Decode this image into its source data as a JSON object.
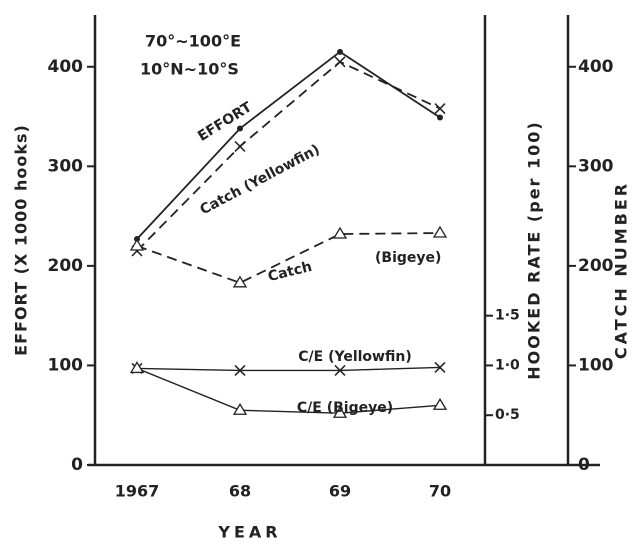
{
  "chart_data": {
    "type": "line",
    "annotations": [
      "70°~100°E",
      "10°N~10°S",
      "(Bigeye)"
    ],
    "xlabel": "YEAR",
    "ylabel": "EFFORT (X 1000 hooks)",
    "y2label": "HOOKED RATE (per 100)",
    "y3label": "CATCH NUMBER",
    "categories": [
      "1967",
      "68",
      "69",
      "70"
    ],
    "ylim": [
      0,
      452
    ],
    "yticks": [
      0,
      100,
      200,
      300,
      400
    ],
    "y2lim": [
      0,
      4.52
    ],
    "y2ticks": [
      {
        "value": 0.5,
        "label": "0·5"
      },
      {
        "value": 1.0,
        "label": "1·0"
      },
      {
        "value": 1.5,
        "label": "1·5"
      }
    ],
    "y3lim": [
      0,
      452
    ],
    "y3ticks": [
      0,
      100,
      200,
      300,
      400
    ],
    "series": [
      {
        "name": "EFFORT",
        "color": "#222",
        "dash": false,
        "marker": "dot",
        "axis": "y",
        "values": [
          227,
          338,
          415,
          349
        ]
      },
      {
        "name": "Catch (Yellowfin)",
        "color": "#222",
        "dash": true,
        "marker": "x",
        "axis": "y3",
        "values": [
          215,
          320,
          405,
          358
        ]
      },
      {
        "name": "Catch",
        "color": "#222",
        "dash": true,
        "marker": "triangle",
        "axis": "y3",
        "values": [
          220,
          183,
          232,
          233
        ]
      },
      {
        "name": "C/E (Yellowfin)",
        "color": "#222",
        "dash": false,
        "marker": "x",
        "axis": "y2",
        "values": [
          0.97,
          0.95,
          0.95,
          0.98
        ]
      },
      {
        "name": "C/E (Bigeye)",
        "color": "#222",
        "dash": false,
        "marker": "triangle",
        "axis": "y2",
        "values": [
          0.97,
          0.55,
          0.52,
          0.6
        ]
      }
    ]
  }
}
